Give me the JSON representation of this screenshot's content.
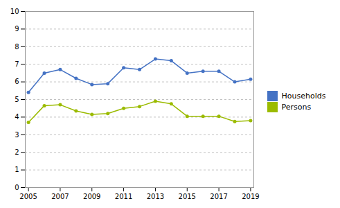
{
  "chart_data": {
    "type": "line",
    "x": [
      2005,
      2006,
      2007,
      2008,
      2009,
      2010,
      2011,
      2012,
      2013,
      2014,
      2015,
      2016,
      2017,
      2018,
      2019
    ],
    "series": [
      {
        "name": "Households",
        "color": "#4472C4",
        "values": [
          5.4,
          6.5,
          6.7,
          6.2,
          5.85,
          5.9,
          6.8,
          6.7,
          7.3,
          7.2,
          6.5,
          6.6,
          6.6,
          6.0,
          6.15
        ]
      },
      {
        "name": "Persons",
        "color": "#9BBB00",
        "values": [
          3.7,
          4.65,
          4.7,
          4.35,
          4.15,
          4.2,
          4.5,
          4.6,
          4.9,
          4.75,
          4.05,
          4.05,
          4.05,
          3.75,
          3.8
        ]
      }
    ],
    "xlim": [
      2004.8,
      2019.2
    ],
    "xticks": [
      2005,
      2007,
      2009,
      2011,
      2013,
      2015,
      2017,
      2019
    ],
    "ylim": [
      0,
      10
    ],
    "yticks": [
      0,
      1,
      2,
      3,
      4,
      5,
      6,
      7,
      8,
      9,
      10
    ],
    "grid": true,
    "legend": "right",
    "marker": "circle"
  }
}
